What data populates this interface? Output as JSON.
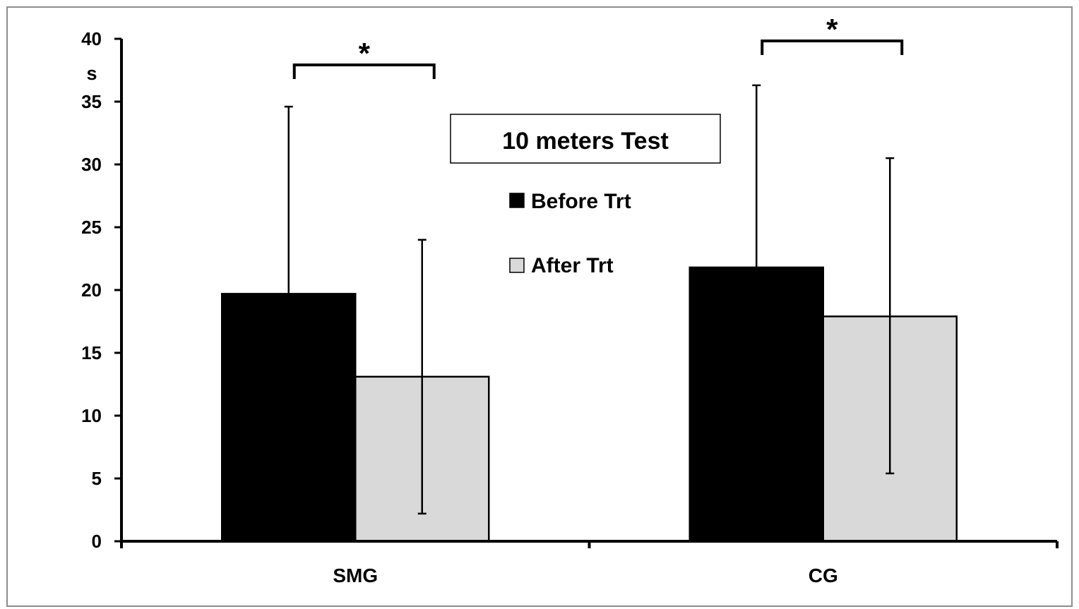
{
  "chart_data": {
    "type": "bar",
    "title": "10 meters Test",
    "ylabel": "s",
    "xlabel": "",
    "ylim": [
      0,
      40
    ],
    "yticks": [
      0,
      5,
      10,
      15,
      20,
      25,
      30,
      35,
      40
    ],
    "categories": [
      "SMG",
      "CG"
    ],
    "series": [
      {
        "name": "Before Trt",
        "color": "#000000",
        "values": [
          19.7,
          21.8
        ],
        "error_upper": [
          34.6,
          36.3
        ]
      },
      {
        "name": "After Trt",
        "color": "#d9d9d9",
        "values": [
          13.1,
          17.9
        ],
        "error_upper": [
          24.0,
          30.5
        ],
        "error_lower": [
          2.2,
          5.4
        ]
      }
    ],
    "annotations": [
      {
        "text": "*",
        "category": "SMG"
      },
      {
        "text": "*",
        "category": "CG"
      }
    ],
    "legend_position": "center",
    "grid": false
  }
}
